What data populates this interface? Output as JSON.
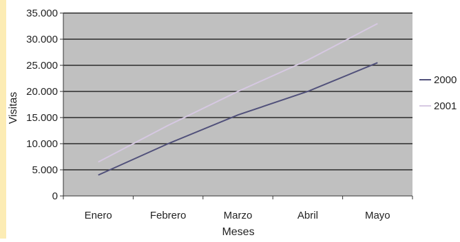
{
  "chart_data": {
    "type": "line",
    "title": "",
    "xlabel": "Meses",
    "ylabel": "Visitas",
    "categories": [
      "Enero",
      "Febrero",
      "Marzo",
      "Abril",
      "Mayo"
    ],
    "ylim": [
      0,
      35000
    ],
    "ytick_values": [
      0,
      5000,
      10000,
      15000,
      20000,
      25000,
      30000,
      35000
    ],
    "ytick_labels": [
      "0",
      "5.000",
      "10.000",
      "15.000",
      "20.000",
      "25.000",
      "30.000",
      "35.000"
    ],
    "grid": "horizontal",
    "legend_position": "right",
    "plot_background": "#c0c0c0",
    "series": [
      {
        "name": "2000",
        "color": "#50507a",
        "values": [
          4000,
          10000,
          15500,
          20000,
          25500
        ]
      },
      {
        "name": "2001",
        "color": "#d6c8e2",
        "values": [
          6500,
          13500,
          20000,
          26000,
          33000
        ]
      }
    ]
  }
}
